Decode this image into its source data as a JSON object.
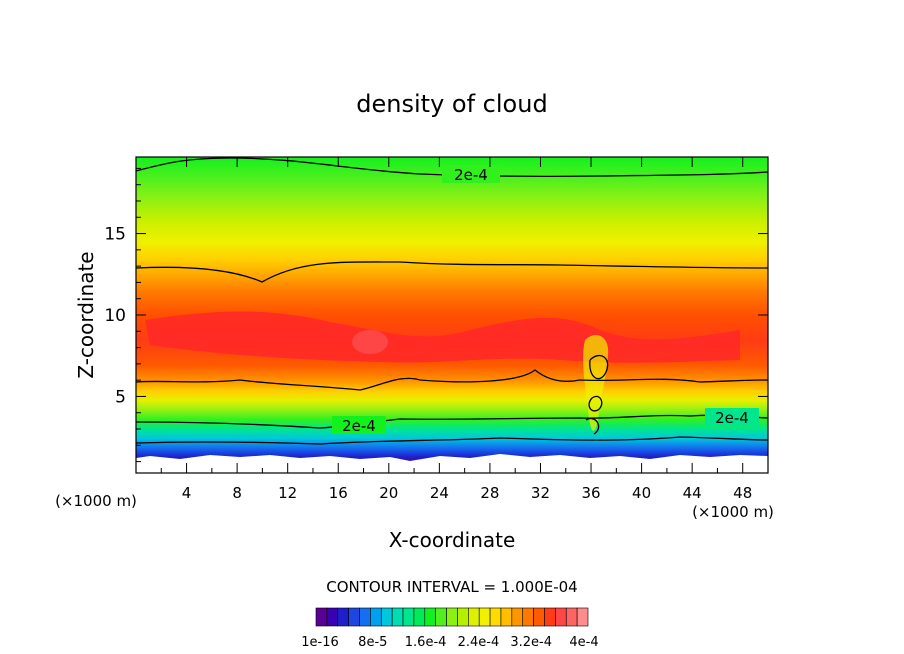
{
  "chart_data": {
    "type": "heatmap",
    "title": "density of cloud",
    "xlabel": "X-coordinate",
    "ylabel": "Z-coordinate",
    "x_unit": "(×1000 m)",
    "xlim": [
      0,
      50
    ],
    "ylim": [
      0.3,
      19.7
    ],
    "x_ticks": [
      4,
      8,
      12,
      16,
      20,
      24,
      28,
      32,
      36,
      40,
      44,
      48
    ],
    "y_ticks": [
      5,
      10,
      15
    ],
    "contour_interval_text": "CONTOUR INTERVAL = 1.000E-04",
    "contour_levels": [
      1e-16,
      0.0001,
      0.0002,
      0.0003,
      0.0004
    ],
    "contour_label": "2e-4",
    "colorbar": {
      "colors": [
        "#5a0096",
        "#3a00b4",
        "#1e1ecc",
        "#1e46e0",
        "#1470f0",
        "#00a0f0",
        "#00c8dc",
        "#00dcb4",
        "#00e68c",
        "#00eb5a",
        "#14f01e",
        "#50f01e",
        "#8cf014",
        "#b4f000",
        "#dcf000",
        "#f0f000",
        "#ffdc00",
        "#ffbe00",
        "#ff9600",
        "#ff7800",
        "#ff5a00",
        "#ff3c14",
        "#ff4646",
        "#ff6464",
        "#ff8c8c"
      ],
      "labels": [
        "1e-16",
        "8e-5",
        "1.6e-4",
        "2.4e-4",
        "3.2e-4",
        "4e-4"
      ]
    },
    "vertical_profile": [
      {
        "z": 1.0,
        "density": 1e-16
      },
      {
        "z": 1.8,
        "density": 0.0001
      },
      {
        "z": 3.4,
        "density": 0.0002
      },
      {
        "z": 6.0,
        "density": 0.0003
      },
      {
        "z": 8.5,
        "density": 0.00038
      },
      {
        "z": 10.0,
        "density": 0.00036
      },
      {
        "z": 13.0,
        "density": 0.0003
      },
      {
        "z": 16.0,
        "density": 0.00025
      },
      {
        "z": 19.0,
        "density": 0.0002
      }
    ]
  }
}
